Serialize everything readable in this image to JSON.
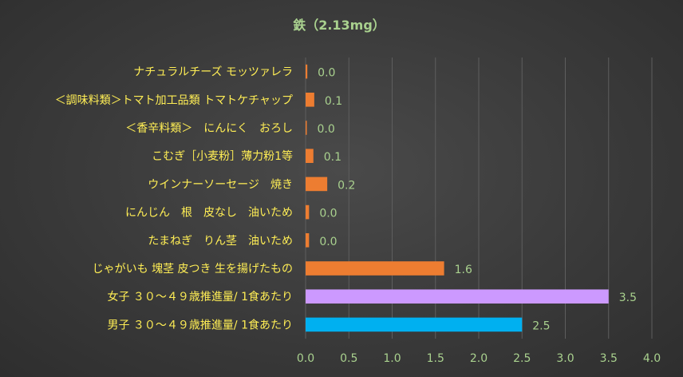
{
  "chart_data": {
    "type": "bar",
    "orientation": "horizontal",
    "title": "鉄（2.13mg）",
    "categories": [
      "ナチュラルチーズ モッツァレラ",
      "＜調味料類＞トマト加工品類 トマトケチャップ",
      "＜香辛料類＞　にんにく　おろし",
      "こむぎ［小麦粉］薄力粉1等",
      "ウインナーソーセージ　焼き",
      "にんじん　根　皮なし　油いため",
      "たまねぎ　りん茎　油いため",
      "じゃがいも 塊茎 皮つき 生を揚げたもの",
      "女子 ３０～４９歳推進量/ 1食あたり",
      "男子 ３０～４９歳推進量/ 1食あたり"
    ],
    "values": [
      0.02,
      0.1,
      0.01,
      0.09,
      0.25,
      0.04,
      0.04,
      1.6,
      3.5,
      2.5
    ],
    "data_labels": [
      "0.0",
      "0.1",
      "0.0",
      "0.1",
      "0.2",
      "0.0",
      "0.0",
      "1.6",
      "3.5",
      "2.5"
    ],
    "bar_colors": [
      "#ed7d31",
      "#ed7d31",
      "#ed7d31",
      "#ed7d31",
      "#ed7d31",
      "#ed7d31",
      "#ed7d31",
      "#ed7d31",
      "#cc99ff",
      "#00b0f0"
    ],
    "xlim": [
      0,
      4.0
    ],
    "xticks": [
      "0.0",
      "0.5",
      "1.0",
      "1.5",
      "2.0",
      "2.5",
      "3.0",
      "3.5",
      "4.0"
    ],
    "xlabel": "",
    "ylabel": "",
    "grid": true,
    "legend": "none"
  }
}
